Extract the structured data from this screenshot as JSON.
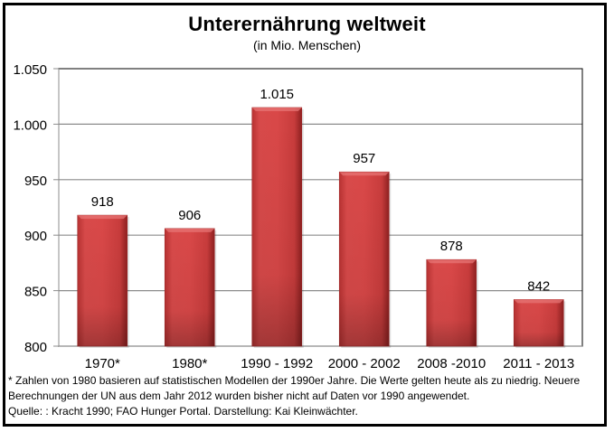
{
  "chart_data": {
    "type": "bar",
    "title": "Unterernährung weltweit",
    "subtitle": "(in Mio. Menschen)",
    "xlabel": "",
    "ylabel": "",
    "categories": [
      "1970*",
      "1980*",
      "1990 - 1992",
      "2000 - 2002",
      "2008 -2010",
      "2011 - 2013"
    ],
    "values": [
      918,
      906,
      1015,
      957,
      878,
      842
    ],
    "data_labels": [
      "918",
      "906",
      "1.015",
      "957",
      "878",
      "842"
    ],
    "ylim": [
      800,
      1050
    ],
    "yticks": [
      800,
      850,
      900,
      950,
      1000,
      1050
    ],
    "ytick_labels": [
      "800",
      "850",
      "900",
      "950",
      "1.000",
      "1.050"
    ],
    "grid": true,
    "legend": "none",
    "bar_color": "#d04545"
  },
  "footnote": {
    "line1": "* Zahlen von 1980 basieren auf statistischen Modellen der 1990er Jahre. Die Werte gelten heute als zu niedrig. Neuere",
    "line2": "Berechnungen der UN aus dem Jahr 2012 wurden bisher nicht auf Daten vor 1990 angewendet.",
    "line3": "Quelle: : Kracht 1990; FAO Hunger Portal. Darstellung: Kai Kleinwächter."
  }
}
